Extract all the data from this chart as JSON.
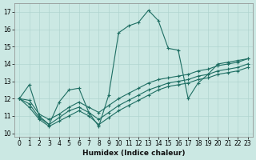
{
  "xlabel": "Humidex (Indice chaleur)",
  "ylabel": "",
  "bg_color": "#cbe8e3",
  "grid_color": "#b0d5cf",
  "line_color": "#1e6e63",
  "xlim": [
    -0.5,
    23.5
  ],
  "ylim": [
    9.8,
    17.5
  ],
  "yticks": [
    10,
    11,
    12,
    13,
    14,
    15,
    16,
    17
  ],
  "xticks": [
    0,
    1,
    2,
    3,
    4,
    5,
    6,
    7,
    8,
    9,
    10,
    11,
    12,
    13,
    14,
    15,
    16,
    17,
    18,
    19,
    20,
    21,
    22,
    23
  ],
  "series": [
    [
      12.0,
      12.8,
      11.0,
      10.5,
      11.8,
      12.5,
      12.6,
      11.2,
      10.4,
      12.2,
      15.8,
      16.2,
      16.4,
      17.1,
      16.5,
      14.9,
      14.8,
      12.0,
      12.9,
      13.4,
      14.0,
      14.1,
      14.2,
      14.3
    ],
    [
      12.0,
      11.9,
      11.1,
      10.8,
      11.1,
      11.5,
      11.8,
      11.5,
      11.2,
      11.6,
      12.0,
      12.3,
      12.6,
      12.9,
      13.1,
      13.2,
      13.3,
      13.4,
      13.6,
      13.7,
      13.9,
      14.0,
      14.1,
      14.3
    ],
    [
      12.0,
      11.7,
      10.9,
      10.5,
      10.9,
      11.3,
      11.5,
      11.2,
      10.8,
      11.2,
      11.6,
      11.9,
      12.2,
      12.5,
      12.7,
      12.9,
      13.0,
      13.1,
      13.3,
      13.4,
      13.6,
      13.7,
      13.8,
      14.0
    ],
    [
      12.0,
      11.5,
      10.8,
      10.4,
      10.7,
      11.0,
      11.3,
      11.0,
      10.5,
      10.9,
      11.3,
      11.6,
      11.9,
      12.2,
      12.5,
      12.7,
      12.8,
      12.9,
      13.1,
      13.2,
      13.4,
      13.5,
      13.6,
      13.8
    ]
  ],
  "marker": "+",
  "markersize": 3,
  "linewidth": 0.8,
  "xlabel_fontsize": 6.5,
  "tick_fontsize": 5.5
}
